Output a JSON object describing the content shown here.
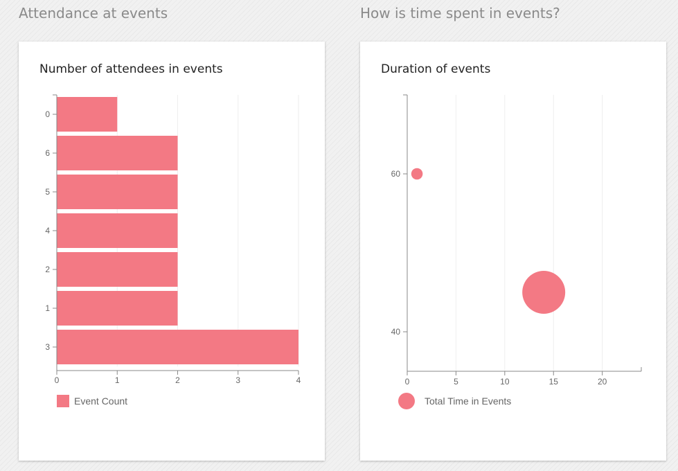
{
  "sections": {
    "left_title": "Attendance at events",
    "right_title": "How is time spent in events?"
  },
  "accent_color": "#f37984",
  "chart_data": [
    {
      "type": "bar",
      "orientation": "horizontal",
      "title": "Number of attendees in events",
      "categories": [
        "0",
        "6",
        "5",
        "4",
        "2",
        "1",
        "3"
      ],
      "series": [
        {
          "name": "Event Count",
          "values": [
            1,
            2,
            2,
            2,
            2,
            2,
            4
          ],
          "color": "#f37984"
        }
      ],
      "xlim": [
        0,
        4
      ],
      "xticks": [
        0,
        1,
        2,
        3,
        4
      ],
      "grid": true,
      "legend": "bottom-left"
    },
    {
      "type": "scatter",
      "subtype": "bubble",
      "title": "Duration of events",
      "series": [
        {
          "name": "Total Time in Events",
          "color": "#f37984",
          "points": [
            {
              "x": 1,
              "y": 60,
              "size": 1
            },
            {
              "x": 14,
              "y": 45,
              "size": 14
            }
          ]
        }
      ],
      "xlim": [
        0,
        24
      ],
      "ylim": [
        35,
        70
      ],
      "xticks": [
        0,
        5,
        10,
        15,
        20
      ],
      "yticks": [
        40,
        60
      ],
      "grid": true,
      "legend": "bottom-left"
    }
  ]
}
